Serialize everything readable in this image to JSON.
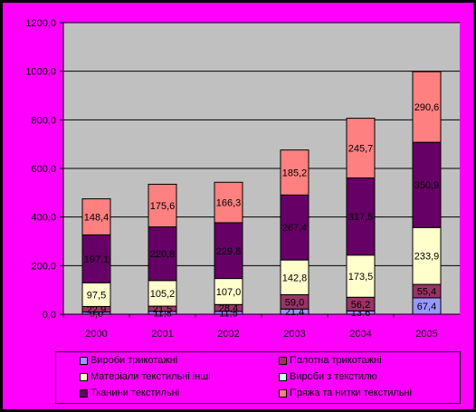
{
  "chart_data": {
    "type": "bar",
    "stacked": true,
    "categories": [
      "2000",
      "2001",
      "2002",
      "2003",
      "2004",
      "2005"
    ],
    "ylim": [
      0,
      1200
    ],
    "yticks": [
      "0,0",
      "200,0",
      "400,0",
      "600,0",
      "800,0",
      "1000,0",
      "1200,0"
    ],
    "grid": true,
    "legend_position": "bottom",
    "series": [
      {
        "name": "Вироби трикотажні",
        "color": "#9999ff",
        "values": [
          9.0,
          11.8,
          11.5,
          21.4,
          13.6,
          67.4
        ],
        "labels": [
          "9,0",
          "11,8",
          "11,5",
          "21,4",
          "13,6",
          "67,4"
        ]
      },
      {
        "name": "Полотна трикотажні",
        "color": "#993366",
        "values": [
          22.9,
          21.5,
          28.4,
          59.0,
          56.2,
          55.4
        ],
        "labels": [
          "22,9",
          "21,5",
          "28,4",
          "59,0",
          "56,2",
          "55,4"
        ]
      },
      {
        "name": "Матеріали текстильні інші",
        "color": "#ffffcc",
        "values": [
          97.5,
          105.2,
          107.0,
          142.8,
          173.5,
          233.9
        ],
        "labels": [
          "97,5",
          "105,2",
          "107,0",
          "142,8",
          "173,5",
          "233,9"
        ]
      },
      {
        "name": "Вироби з текстилю",
        "color": "#ccffff",
        "values": [
          0,
          0,
          0,
          0,
          0,
          0
        ],
        "labels": [
          "",
          "",
          "",
          "",
          "",
          ""
        ]
      },
      {
        "name": "Тканини текстильні",
        "color": "#660066",
        "values": [
          197.1,
          220.8,
          229.8,
          267.4,
          317.5,
          350.9
        ],
        "labels": [
          "197,1",
          "220,8",
          "229,8",
          "267,4",
          "317,5",
          "350,9"
        ]
      },
      {
        "name": "Пряжа та нитки текстильні",
        "color": "#ff8080",
        "values": [
          148.4,
          175.6,
          166.3,
          185.2,
          245.7,
          290.6
        ],
        "labels": [
          "148,4",
          "175,6",
          "166,3",
          "185,2",
          "245,7",
          "290,6"
        ]
      }
    ]
  },
  "legend": {
    "items": [
      "Вироби трикотажні",
      "Полотна трикотажні",
      "Матеріали текстильні інші",
      "Вироби з текстилю",
      "Тканини текстильні",
      "Пряжа та нитки текстильні"
    ]
  }
}
